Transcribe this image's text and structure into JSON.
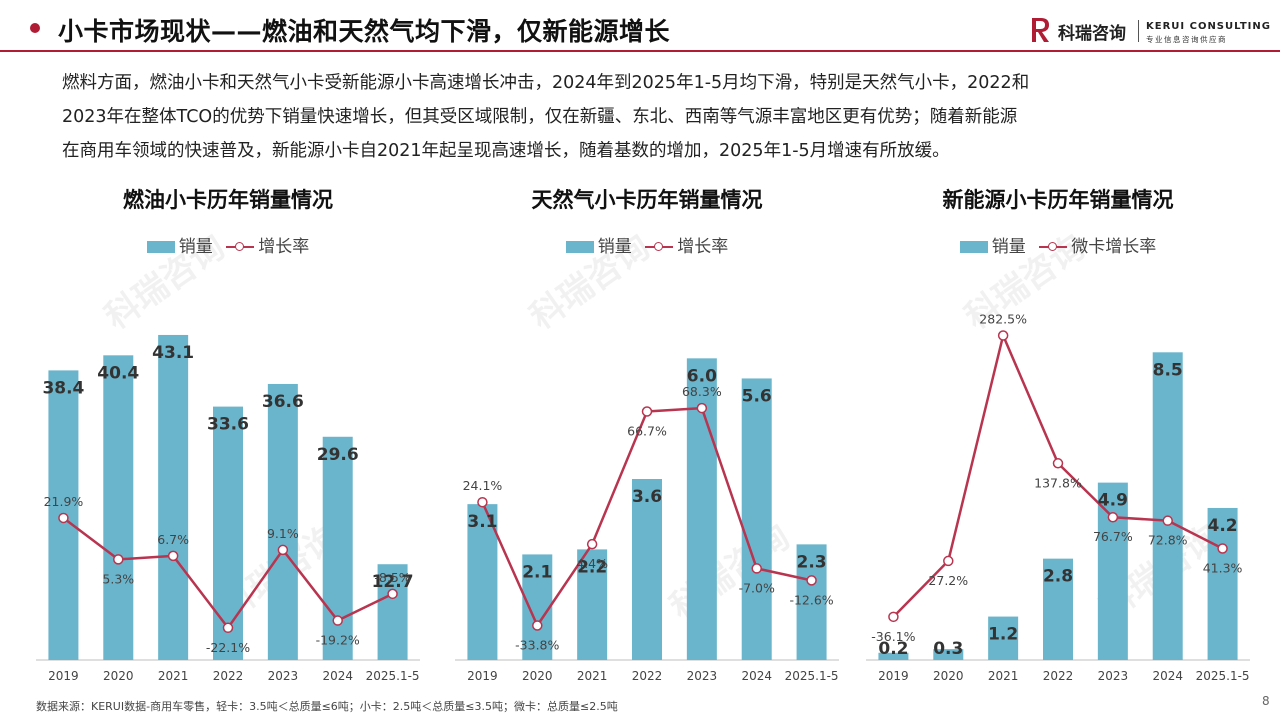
{
  "header": {
    "title": "小卡市场现状——燃油和天然气均下滑，仅新能源增长",
    "brand_cn": "科瑞咨询",
    "brand_en": "KERUI CONSULTING",
    "brand_sub": "专业信息咨询供应商",
    "accent_color": "#b01c34"
  },
  "intro": {
    "lines": [
      "燃料方面，燃油小卡和天然气小卡受新能源小卡高速增长冲击，2024年到2025年1-5月均下滑，特别是天然气小卡，2022和",
      "2023年在整体TCO的优势下销量快速增长，但其受区域限制，仅在新疆、东北、西南等气源丰富地区更有优势；随着新能源",
      "在商用车领域的快速普及，新能源小卡自2021年起呈现高速增长，随着基数的增加，2025年1-5月增速有所放缓。"
    ]
  },
  "watermark_text": "科瑞咨询",
  "chart_data": [
    {
      "type": "bar",
      "title": "燃油小卡历年销量情况",
      "categories": [
        "2019",
        "2020",
        "2021",
        "2022",
        "2023",
        "2024",
        "2025.1-5"
      ],
      "bar_series": {
        "name": "销量",
        "values": [
          38.4,
          40.4,
          43.1,
          33.6,
          36.6,
          29.6,
          12.7
        ],
        "labels": [
          "38.4",
          "40.4",
          "43.1",
          "33.6",
          "36.6",
          "29.6",
          "12.7"
        ],
        "color": "#6bb5cc"
      },
      "line_series": {
        "name": "增长率",
        "values": [
          21.9,
          5.3,
          6.7,
          -22.1,
          9.1,
          -19.2,
          -8.5
        ],
        "labels": [
          "21.9%",
          "5.3%",
          "6.7%",
          "-22.1%",
          "9.1%",
          "-19.2%",
          "-8.5%"
        ],
        "color": "#b8344f"
      },
      "bar_max": 48,
      "line_range": [
        -35,
        110
      ]
    },
    {
      "type": "bar",
      "title": "天然气小卡历年销量情况",
      "categories": [
        "2019",
        "2020",
        "2021",
        "2022",
        "2023",
        "2024",
        "2025.1-5"
      ],
      "bar_series": {
        "name": "销量",
        "values": [
          3.1,
          2.1,
          2.2,
          3.6,
          6.0,
          5.6,
          2.3
        ],
        "labels": [
          "3.1",
          "2.1",
          "2.2",
          "3.6",
          "6.0",
          "5.6",
          "2.3"
        ],
        "color": "#6bb5cc"
      },
      "line_series": {
        "name": "增长率",
        "values": [
          24.1,
          -33.8,
          4.4,
          66.7,
          68.3,
          -7.0,
          -12.6
        ],
        "labels": [
          "24.1%",
          "-33.8%",
          "4.4%",
          "66.7%",
          "68.3%",
          "-7.0%",
          "-12.6%"
        ],
        "color": "#b8344f"
      },
      "bar_max": 7.2,
      "line_range": [
        -50,
        120
      ]
    },
    {
      "type": "bar",
      "title": "新能源小卡历年销量情况",
      "categories": [
        "2019",
        "2020",
        "2021",
        "2022",
        "2023",
        "2024",
        "2025.1-5"
      ],
      "bar_series": {
        "name": "销量",
        "values": [
          0.2,
          0.3,
          1.2,
          2.8,
          4.9,
          8.5,
          4.2
        ],
        "labels": [
          "0.2",
          "0.3",
          "1.2",
          "2.8",
          "4.9",
          "8.5",
          "4.2"
        ],
        "color": "#6bb5cc"
      },
      "line_series": {
        "name": "微卡增长率",
        "values": [
          -36.1,
          27.2,
          282.5,
          137.8,
          76.7,
          72.8,
          41.3
        ],
        "labels": [
          "-36.1%",
          "27.2%",
          "282.5%",
          "137.8%",
          "76.7%",
          "72.8%",
          "41.3%"
        ],
        "color": "#b8344f"
      },
      "bar_max": 10,
      "line_range": [
        -85,
        325
      ]
    }
  ],
  "footnote": "数据来源：KERUI数据-商用车零售，轻卡：3.5吨＜总质量≤6吨；小卡：2.5吨＜总质量≤3.5吨；微卡：总质量≤2.5吨",
  "page_number": "8"
}
